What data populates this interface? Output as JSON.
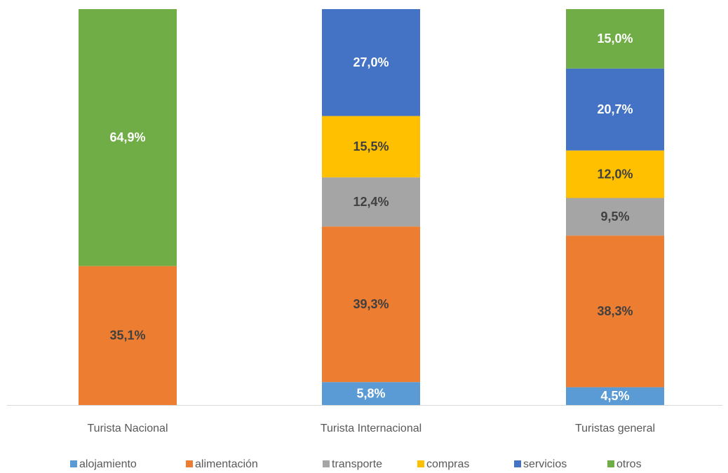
{
  "chart_data": {
    "type": "stacked_bar",
    "categories": [
      "Turista Nacional",
      "Turista Internacional",
      "Turistas general"
    ],
    "series": [
      {
        "name": "alojamiento",
        "color": "#5b9bd5",
        "values": [
          null,
          5.8,
          4.5
        ],
        "value_labels": [
          null,
          "5,8%",
          "4,5%"
        ]
      },
      {
        "name": "alimentación",
        "color": "#ed7d31",
        "values": [
          35.1,
          39.3,
          38.3
        ],
        "value_labels": [
          "35,1%",
          "39,3%",
          "38,3%"
        ]
      },
      {
        "name": "transporte",
        "color": "#a5a5a5",
        "values": [
          null,
          12.4,
          9.5
        ],
        "value_labels": [
          null,
          "12,4%",
          "9,5%"
        ]
      },
      {
        "name": "compras",
        "color": "#ffc000",
        "values": [
          null,
          15.5,
          12.0
        ],
        "value_labels": [
          null,
          "15,5%",
          "12,0%"
        ]
      },
      {
        "name": "servicios",
        "color": "#4472c4",
        "values": [
          null,
          27.0,
          20.7
        ],
        "value_labels": [
          null,
          "27,0%",
          "20,7%"
        ]
      },
      {
        "name": "otros",
        "color": "#70ad47",
        "values": [
          64.9,
          null,
          15.0
        ],
        "value_labels": [
          "64,9%",
          null,
          "15,0%"
        ]
      }
    ],
    "legend": "bottom"
  }
}
